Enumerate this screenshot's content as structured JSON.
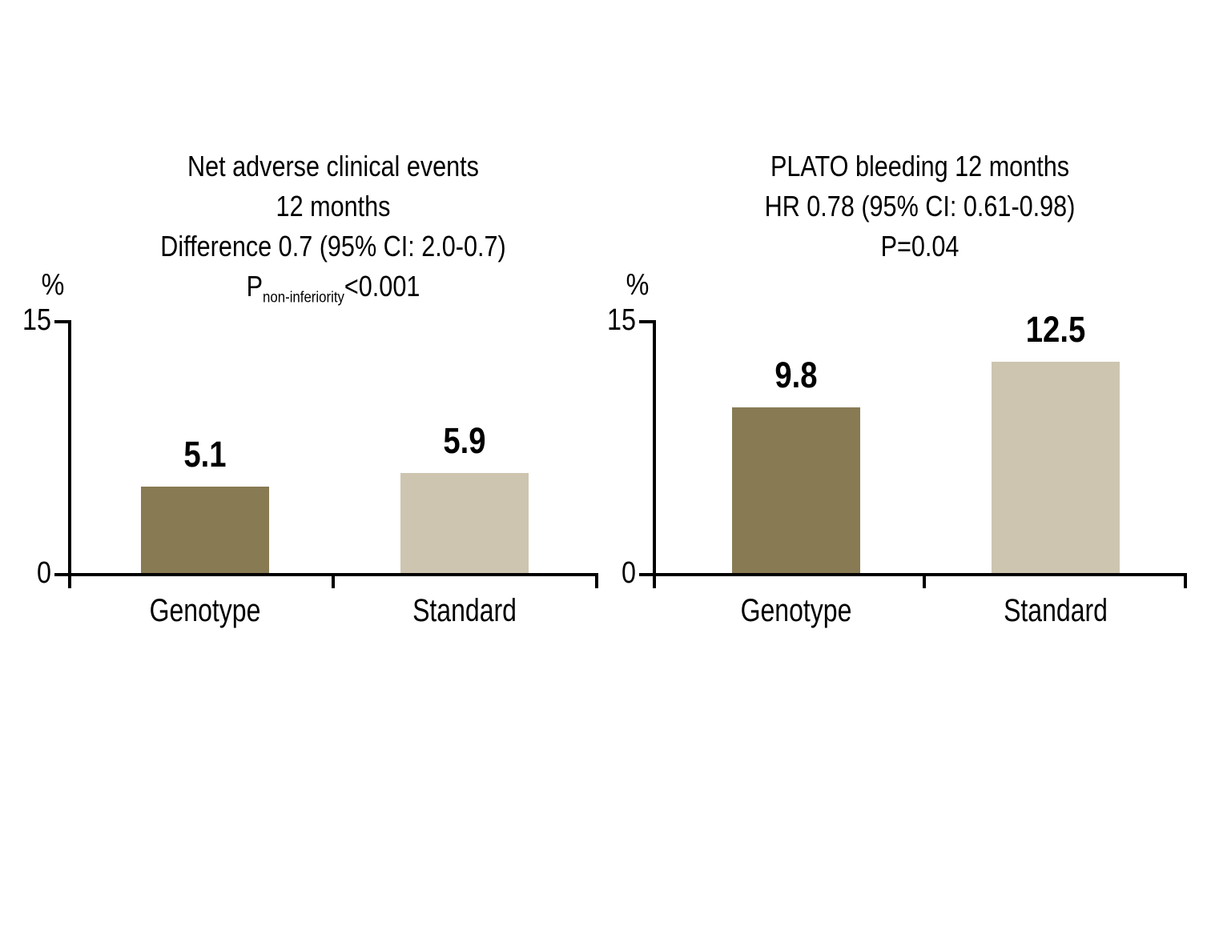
{
  "page": {
    "background": "#ffffff"
  },
  "colors": {
    "genotype_bar": "#887A53",
    "standard_bar": "#CDC5B0",
    "axis": "#000000",
    "text": "#000000"
  },
  "chart_data": [
    {
      "type": "bar",
      "title": "Net adverse clinical events 12 months Difference 0.7 (95% CI: 2.0-0.7) Pnon-inferiority<0.001",
      "title_lines": [
        "Net adverse clinical events",
        "12 months",
        "Difference 0.7 (95% CI: 2.0-0.7)"
      ],
      "p_line": {
        "prefix": "P",
        "subscript": "non-inferiority",
        "suffix": "<0.001"
      },
      "ylabel": "%",
      "yticks": [
        "15",
        "0"
      ],
      "ylim": [
        0,
        15
      ],
      "categories": [
        "Genotype",
        "Standard"
      ],
      "values": [
        5.1,
        5.9
      ],
      "bar_colors": [
        "#887A53",
        "#CDC5B0"
      ],
      "grid": false,
      "legend": "none"
    },
    {
      "type": "bar",
      "title": "PLATO bleeding 12 months HR 0.78 (95% CI: 0.61-0.98) P=0.04",
      "title_lines": [
        "PLATO bleeding 12 months",
        "HR 0.78 (95% CI: 0.61-0.98)",
        "P=0.04"
      ],
      "ylabel": "%",
      "yticks": [
        "15",
        "0"
      ],
      "ylim": [
        0,
        15
      ],
      "categories": [
        "Genotype",
        "Standard"
      ],
      "values": [
        9.8,
        12.5
      ],
      "bar_colors": [
        "#887A53",
        "#CDC5B0"
      ],
      "grid": false,
      "legend": "none"
    }
  ]
}
